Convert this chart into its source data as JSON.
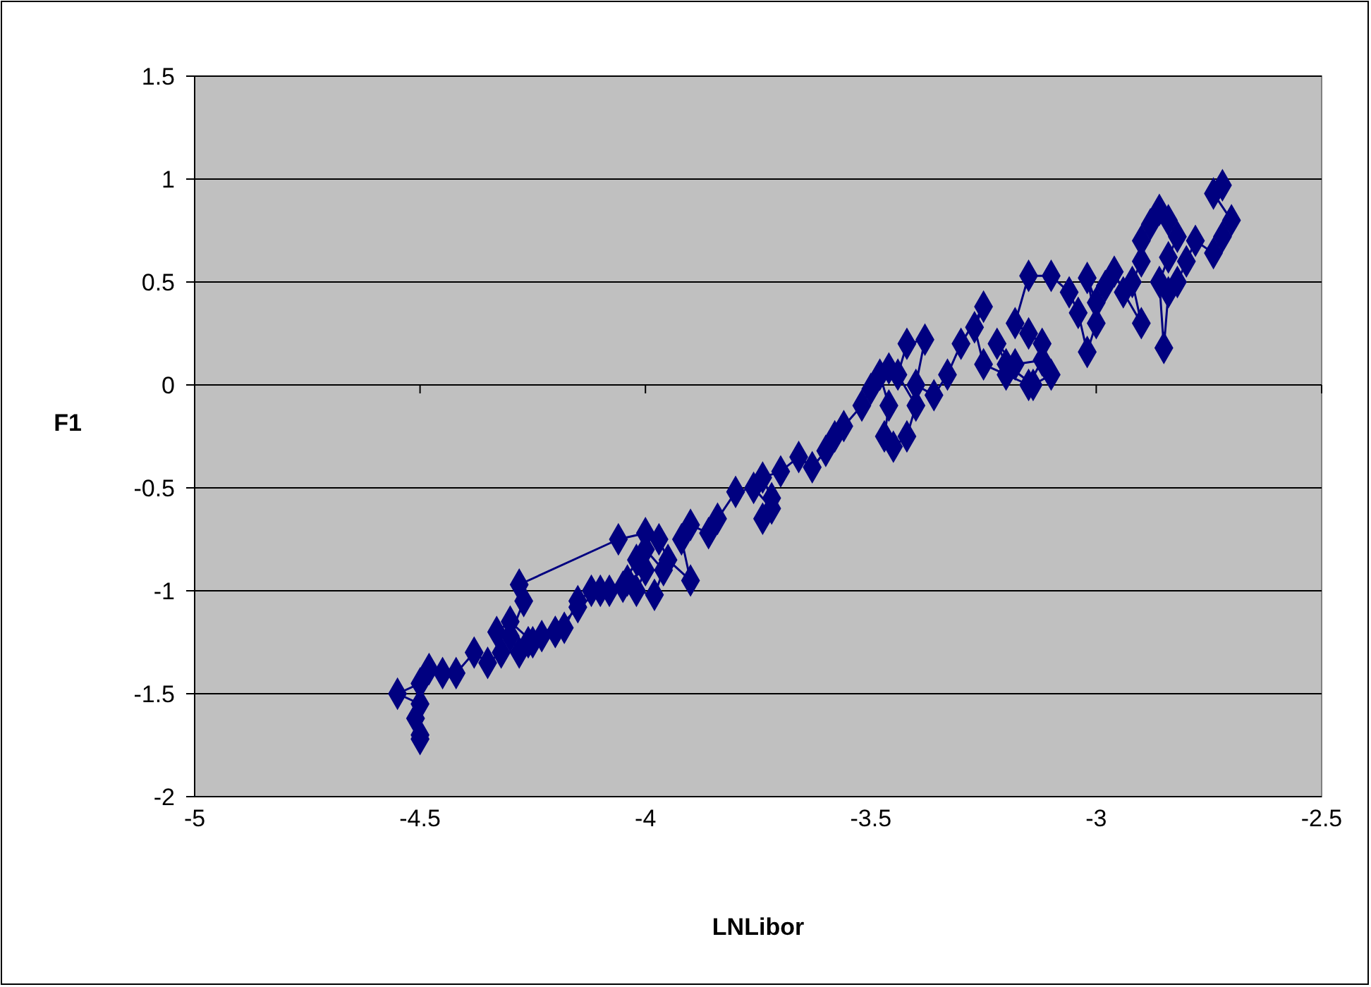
{
  "chart_data": {
    "type": "line",
    "xlabel": "LNLibor",
    "ylabel": "F1",
    "xlim": [
      -5,
      -2.5
    ],
    "xticks": [
      -5,
      -4.5,
      -4,
      -3.5,
      -3,
      -2.5
    ],
    "ylim": [
      -2,
      1.5
    ],
    "yticks": [
      -2,
      -1.5,
      -1,
      -0.5,
      0,
      0.5,
      1,
      1.5
    ],
    "grid": "y",
    "marker": "diamond",
    "line_style": "solid",
    "series": [
      {
        "color": "#000080",
        "x": [
          -2.72,
          -2.74,
          -2.7,
          -2.72,
          -2.74,
          -2.78,
          -2.8,
          -2.82,
          -2.84,
          -2.85,
          -2.86,
          -2.84,
          -2.82,
          -2.84,
          -2.86,
          -2.88,
          -2.9,
          -2.9,
          -2.92,
          -2.9,
          -2.94,
          -2.96,
          -2.98,
          -3.0,
          -3.02,
          -3.0,
          -3.02,
          -3.04,
          -3.06,
          -3.1,
          -3.15,
          -3.18,
          -3.15,
          -3.12,
          -3.1,
          -3.14,
          -3.2,
          -3.22,
          -3.18,
          -3.12,
          -3.15,
          -3.2,
          -3.25,
          -3.27,
          -3.25,
          -3.3,
          -3.33,
          -3.36,
          -3.4,
          -3.38,
          -3.42,
          -3.44,
          -3.4,
          -3.42,
          -3.45,
          -3.47,
          -3.46,
          -3.48,
          -3.46,
          -3.5,
          -3.52,
          -3.56,
          -3.58,
          -3.6,
          -3.63,
          -3.66,
          -3.7,
          -3.74,
          -3.72,
          -3.74,
          -3.72,
          -3.76,
          -3.8,
          -3.84,
          -3.86,
          -3.9,
          -3.92,
          -3.9,
          -3.95,
          -3.97,
          -4.0,
          -4.06,
          -4.28,
          -4.27,
          -4.3,
          -4.28,
          -4.26,
          -4.23,
          -4.2,
          -4.18,
          -4.15,
          -4.12,
          -4.08,
          -4.04,
          -4.0,
          -4.02,
          -3.98,
          -3.96,
          -4.0,
          -4.02,
          -4.05,
          -4.1,
          -4.15,
          -4.2,
          -4.25,
          -4.3,
          -4.33,
          -4.32,
          -4.35,
          -4.38,
          -4.42,
          -4.45,
          -4.48,
          -4.5,
          -4.55,
          -4.5,
          -4.51,
          -4.5,
          -4.5
        ],
        "values": [
          0.97,
          0.93,
          0.8,
          0.72,
          0.64,
          0.7,
          0.6,
          0.5,
          0.45,
          0.18,
          0.5,
          0.62,
          0.72,
          0.8,
          0.85,
          0.78,
          0.7,
          0.6,
          0.5,
          0.3,
          0.45,
          0.55,
          0.48,
          0.4,
          0.52,
          0.3,
          0.16,
          0.35,
          0.45,
          0.53,
          0.53,
          0.3,
          0.25,
          0.2,
          0.05,
          0.0,
          0.1,
          0.2,
          0.1,
          0.12,
          0.0,
          0.05,
          0.1,
          0.28,
          0.38,
          0.2,
          0.05,
          -0.05,
          0.0,
          0.22,
          0.2,
          0.05,
          -0.1,
          -0.25,
          -0.3,
          -0.25,
          -0.1,
          0.05,
          0.08,
          -0.02,
          -0.1,
          -0.2,
          -0.25,
          -0.32,
          -0.4,
          -0.35,
          -0.42,
          -0.45,
          -0.55,
          -0.65,
          -0.6,
          -0.5,
          -0.52,
          -0.65,
          -0.72,
          -0.68,
          -0.75,
          -0.95,
          -0.85,
          -0.75,
          -0.72,
          -0.75,
          -0.97,
          -1.05,
          -1.22,
          -1.3,
          -1.25,
          -1.22,
          -1.2,
          -1.18,
          -1.05,
          -1.0,
          -1.0,
          -0.95,
          -0.9,
          -1.0,
          -1.02,
          -0.9,
          -0.8,
          -0.85,
          -0.98,
          -1.0,
          -1.08,
          -1.2,
          -1.25,
          -1.15,
          -1.2,
          -1.3,
          -1.35,
          -1.3,
          -1.4,
          -1.4,
          -1.38,
          -1.45,
          -1.5,
          -1.55,
          -1.62,
          -1.7,
          -1.72
        ]
      }
    ]
  }
}
